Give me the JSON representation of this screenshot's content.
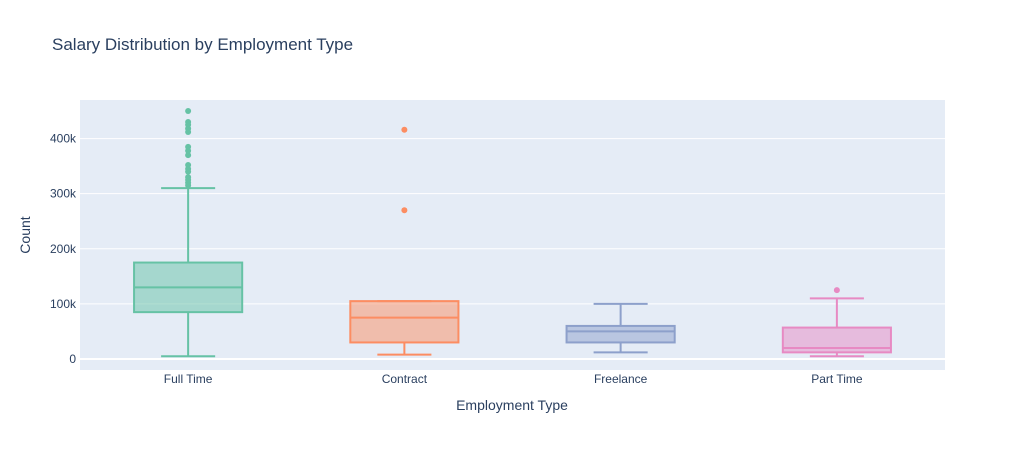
{
  "chart_data": {
    "type": "box",
    "title": "Salary Distribution by Employment Type",
    "xlabel": "Employment Type",
    "ylabel": "Count",
    "ylim": [
      -20000,
      470000
    ],
    "yticks": [
      {
        "value": 0,
        "label": "0"
      },
      {
        "value": 100000,
        "label": "100k"
      },
      {
        "value": 200000,
        "label": "200k"
      },
      {
        "value": 300000,
        "label": "300k"
      },
      {
        "value": 400000,
        "label": "400k"
      }
    ],
    "grid": true,
    "legend": "none",
    "colors": {
      "plot_bg": "#e5ecf6",
      "text": "#2a3f5f"
    },
    "series": [
      {
        "category": "Full Time",
        "color": "#66c2a5",
        "fill": "rgba(102,194,165,0.5)",
        "whisker_low": 5000,
        "q1": 85000,
        "median": 130000,
        "q3": 175000,
        "whisker_high": 310000,
        "outliers": [
          315000,
          320000,
          325000,
          330000,
          340000,
          345000,
          352000,
          370000,
          378000,
          385000,
          412000,
          418000,
          425000,
          430000,
          450000
        ]
      },
      {
        "category": "Contract",
        "color": "#fc8d62",
        "fill": "rgba(252,141,98,0.5)",
        "whisker_low": 8000,
        "q1": 30000,
        "median": 75000,
        "q3": 105000,
        "whisker_high": 105000,
        "outliers": [
          270000,
          416000
        ]
      },
      {
        "category": "Freelance",
        "color": "#8da0cb",
        "fill": "rgba(141,160,203,0.5)",
        "whisker_low": 12000,
        "q1": 30000,
        "median": 50000,
        "q3": 60000,
        "whisker_high": 100000,
        "outliers": []
      },
      {
        "category": "Part Time",
        "color": "#e78ac3",
        "fill": "rgba(231,138,195,0.5)",
        "whisker_low": 5000,
        "q1": 12000,
        "median": 20000,
        "q3": 57000,
        "whisker_high": 110000,
        "outliers": [
          125000
        ]
      }
    ]
  }
}
